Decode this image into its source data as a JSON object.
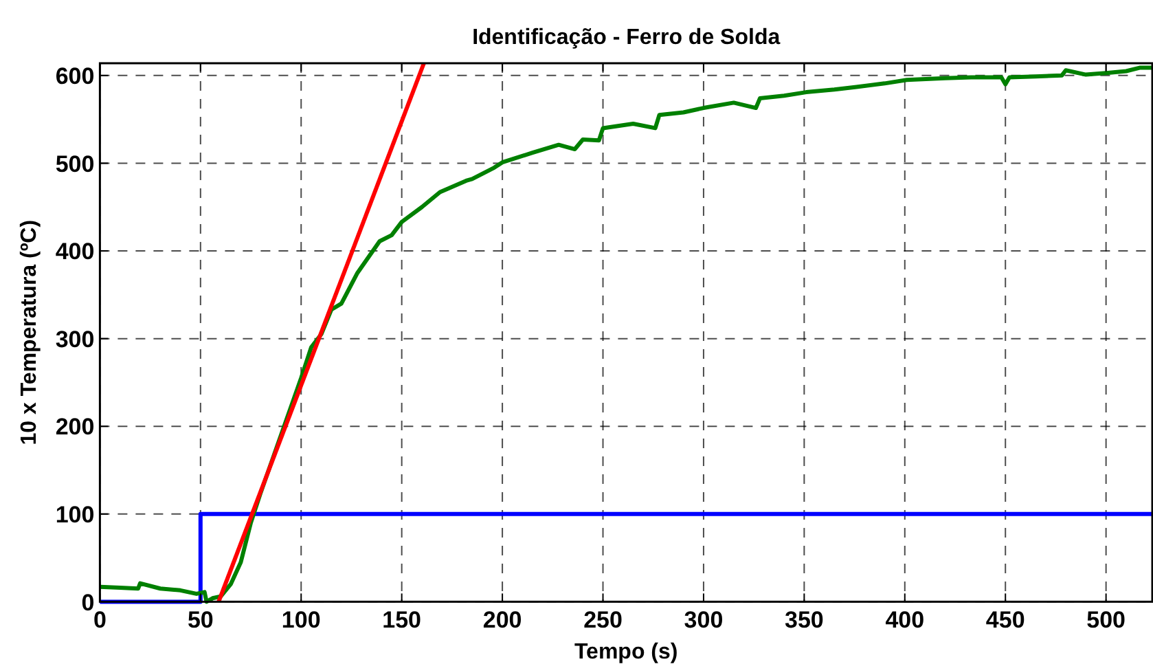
{
  "chart_data": {
    "type": "line",
    "title": "Identificação - Ferro de Solda",
    "xlabel": "Tempo (s)",
    "ylabel": "10 x Temperatura (ºC)",
    "xlim": [
      0,
      523
    ],
    "ylim": [
      0,
      614
    ],
    "xticks": [
      0,
      50,
      100,
      150,
      200,
      250,
      300,
      350,
      400,
      450,
      500
    ],
    "yticks": [
      0,
      100,
      200,
      300,
      400,
      500,
      600
    ],
    "grid": true,
    "line_style": "solid",
    "marker": "none",
    "series": [
      {
        "type": "step",
        "color": "#0000ff",
        "x": [
          0,
          50,
          523
        ],
        "values": [
          0,
          100,
          100
        ]
      },
      {
        "color": "#008000",
        "x": [
          0,
          10,
          19,
          20,
          30,
          40,
          48,
          52,
          53,
          56,
          60,
          65,
          70,
          75,
          80,
          90,
          100,
          105,
          110,
          115,
          120,
          128,
          139,
          145,
          150,
          160,
          169,
          182,
          185,
          196,
          200,
          215,
          228,
          236,
          240,
          248,
          250,
          265,
          276,
          278,
          290,
          300,
          315,
          326,
          328,
          340,
          351,
          365,
          376,
          390,
          401,
          420,
          433,
          448,
          450,
          452,
          465,
          478,
          480,
          490,
          501,
          510,
          517,
          523
        ],
        "values": [
          17,
          16,
          15,
          21,
          15,
          13,
          9,
          11,
          0,
          4,
          6,
          20,
          45,
          90,
          125,
          190,
          255,
          290,
          305,
          333,
          340,
          375,
          411,
          418,
          433,
          450,
          467,
          480,
          482,
          495,
          501,
          512,
          521,
          516,
          527,
          526,
          540,
          545,
          540,
          555,
          558,
          563,
          569,
          563,
          574,
          577,
          581,
          584,
          587,
          591,
          595,
          597,
          598,
          598,
          590,
          598,
          599,
          600,
          606,
          601,
          603,
          605,
          609,
          609
        ]
      },
      {
        "color": "#ff0000",
        "x": [
          59,
          161
        ],
        "values": [
          0,
          614
        ]
      }
    ]
  }
}
